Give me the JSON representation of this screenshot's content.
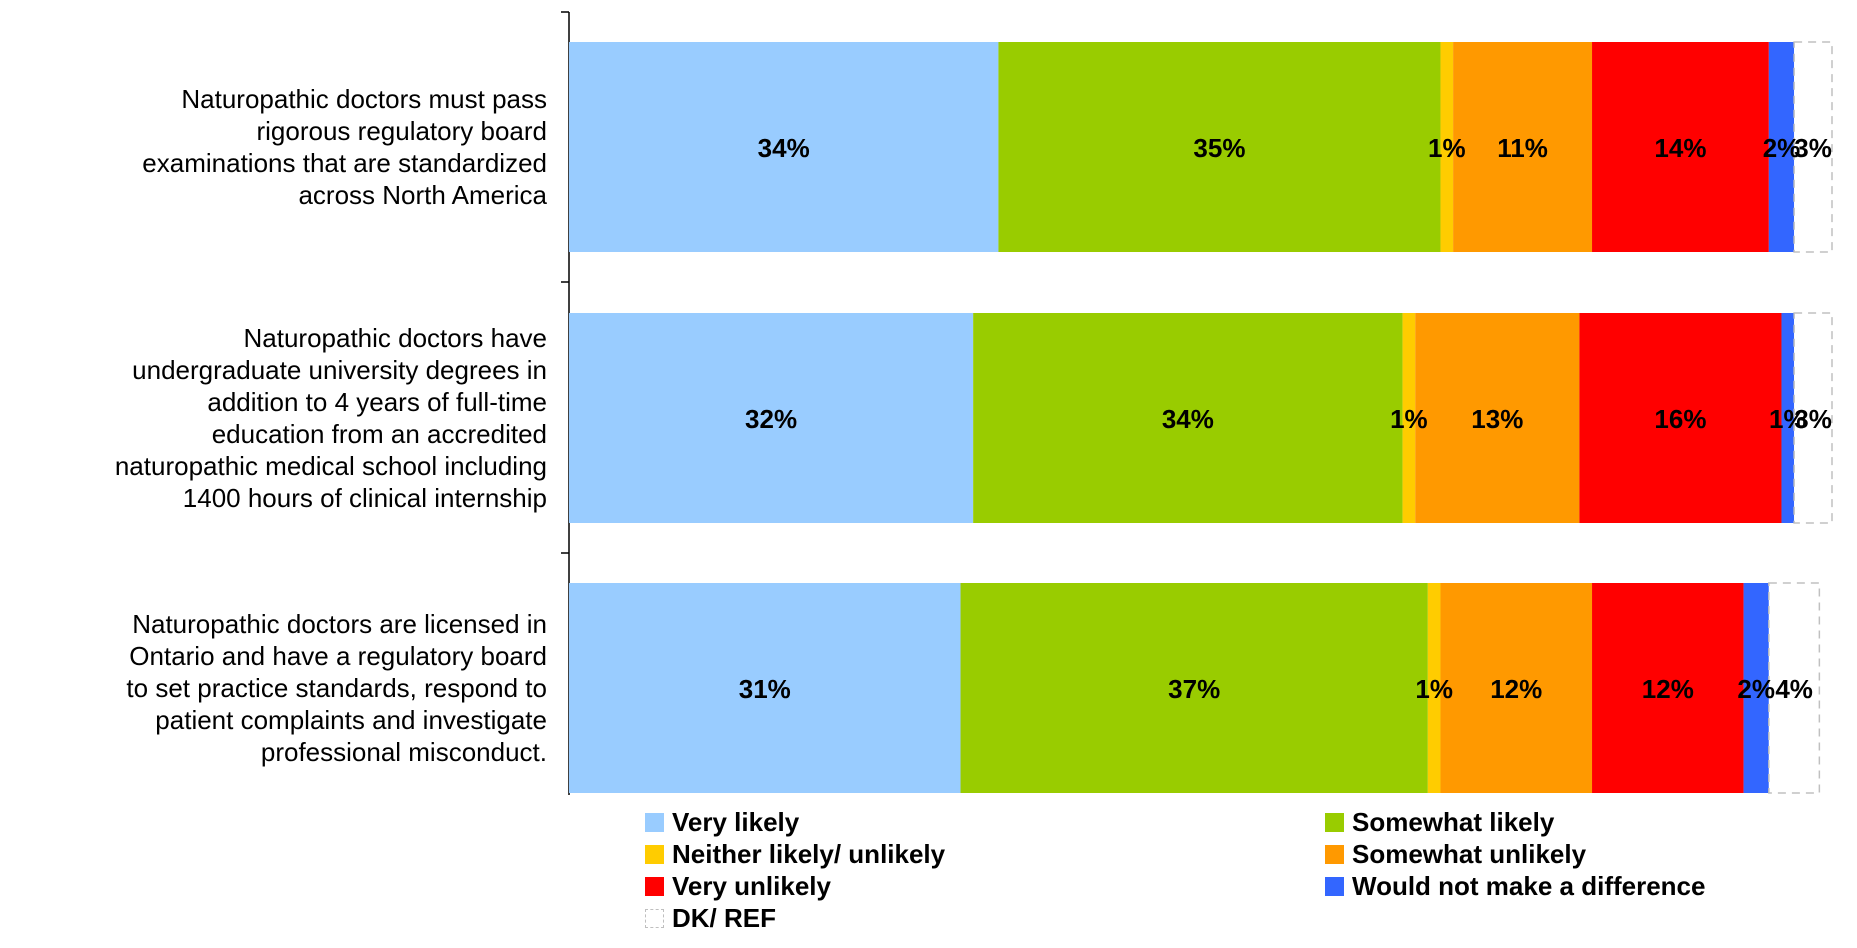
{
  "chart_data": {
    "type": "bar",
    "orientation": "horizontal",
    "stacked": true,
    "percent_scale": true,
    "xlim": [
      0,
      100
    ],
    "grid": false,
    "legend_position": "bottom",
    "categories": [
      "Naturopathic doctors must pass rigorous regulatory board examinations that are standardized across North America",
      "Naturopathic doctors have undergraduate university degrees in addition to 4 years of full-time education from an accredited naturopathic medical school including 1400 hours of clinical internship",
      "Naturopathic doctors are licensed in Ontario and have a regulatory board to set practice standards, respond to patient complaints and investigate professional misconduct."
    ],
    "category_lines": [
      [
        "Naturopathic doctors must pass",
        "rigorous regulatory board",
        "examinations that are standardized",
        "across North America"
      ],
      [
        "Naturopathic doctors have",
        "undergraduate university degrees in",
        "addition to 4 years of full-time",
        "education from an accredited",
        "naturopathic medical school including",
        "1400 hours of clinical internship"
      ],
      [
        "Naturopathic doctors are licensed in",
        "Ontario and have a regulatory board",
        "to set practice standards, respond to",
        "patient complaints and investigate",
        "professional misconduct."
      ]
    ],
    "series": [
      {
        "name": "Very likely",
        "color": "#99CCFF",
        "values": [
          34,
          32,
          31
        ],
        "labels": [
          "34%",
          "32%",
          "31%"
        ]
      },
      {
        "name": "Somewhat likely",
        "color": "#99CC00",
        "values": [
          35,
          34,
          37
        ],
        "labels": [
          "35%",
          "34%",
          "37%"
        ]
      },
      {
        "name": "Neither likely/ unlikely",
        "color": "#FFCC00",
        "values": [
          1,
          1,
          1
        ],
        "labels": [
          "1%",
          "1%",
          "1%"
        ]
      },
      {
        "name": "Somewhat unlikely",
        "color": "#FF9900",
        "values": [
          11,
          13,
          12
        ],
        "labels": [
          "11%",
          "13%",
          "12%"
        ]
      },
      {
        "name": "Very unlikely",
        "color": "#FF0000",
        "values": [
          14,
          16,
          12
        ],
        "labels": [
          "14%",
          "16%",
          "12%"
        ]
      },
      {
        "name": "Would not make a difference",
        "color": "#3366FF",
        "values": [
          2,
          1,
          2
        ],
        "labels": [
          "2%",
          "1%",
          "2%"
        ]
      },
      {
        "name": "DK/ REF",
        "color": "#FFFFFF",
        "dashed": true,
        "values": [
          3,
          3,
          4
        ],
        "labels": [
          "3%",
          "3%",
          "4%"
        ]
      }
    ]
  }
}
